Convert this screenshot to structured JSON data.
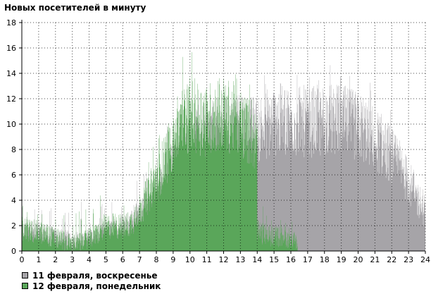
{
  "chart_data": {
    "type": "bar",
    "title": "Новых посетителей в минуту",
    "xlim": [
      0,
      24
    ],
    "ylim": [
      0,
      18
    ],
    "x_ticks": [
      "0",
      "1",
      "2",
      "3",
      "4",
      "5",
      "6",
      "7",
      "8",
      "9",
      "10",
      "11",
      "12",
      "13",
      "14",
      "15",
      "16",
      "17",
      "18",
      "19",
      "20",
      "21",
      "22",
      "23",
      "24"
    ],
    "y_ticks": [
      "0",
      "2",
      "4",
      "6",
      "8",
      "10",
      "12",
      "14",
      "16",
      "18"
    ],
    "grid": true,
    "legend_position": "bottom-left",
    "series": [
      {
        "name": "11 февраля, воскресенье",
        "color": "#a6a4a8",
        "x_hours": [
          0,
          0.5,
          1,
          1.5,
          2,
          2.5,
          3,
          3.5,
          4,
          4.5,
          5,
          5.5,
          6,
          6.5,
          7,
          7.5,
          8,
          8.5,
          9,
          9.5,
          10,
          10.5,
          11,
          11.5,
          12,
          12.5,
          13,
          13.5,
          14,
          14.5,
          15,
          15.5,
          16,
          16.5,
          17,
          17.5,
          18,
          18.5,
          19,
          19.5,
          20,
          20.5,
          21,
          21.5,
          22,
          22.5,
          23,
          23.5,
          24
        ],
        "values": [
          1.5,
          1.5,
          1.5,
          1.2,
          1,
          0.9,
          0.8,
          0.8,
          1,
          1.1,
          1.5,
          1.6,
          2,
          2.3,
          3,
          3.5,
          4.5,
          5.5,
          6.5,
          7.5,
          8.5,
          9,
          9,
          9.3,
          9.5,
          9.5,
          9.6,
          9.5,
          9.6,
          10,
          10.3,
          10.4,
          10.3,
          10.2,
          10.2,
          10.2,
          10.3,
          10.3,
          10.3,
          10,
          9.8,
          9.5,
          8.8,
          8.2,
          7.5,
          6.5,
          5.5,
          4.2,
          3
        ]
      },
      {
        "name": "12 февраля, понедельник",
        "color": "#5aa65a",
        "x_hours": [
          0,
          0.5,
          1,
          1.5,
          2,
          2.5,
          3,
          3.5,
          4,
          4.5,
          5,
          5.5,
          6,
          6.5,
          7,
          7.5,
          8,
          8.5,
          9,
          9.5,
          10,
          10.5,
          11,
          11.5,
          12,
          12.5,
          13,
          13.5,
          13.99,
          14,
          14.5,
          15,
          15.5,
          16,
          16.4
        ],
        "values": [
          1.8,
          1.6,
          1.5,
          1.3,
          1,
          0.8,
          0.6,
          0.7,
          1,
          1.4,
          1.9,
          2,
          1.9,
          2.2,
          3.3,
          4.4,
          5.8,
          7.1,
          9,
          10.3,
          10.8,
          10.5,
          10.3,
          10.7,
          10.8,
          10.5,
          10.2,
          9.4,
          8.5,
          1.5,
          1.3,
          1.1,
          1.2,
          1.0,
          0.6
        ]
      }
    ]
  }
}
